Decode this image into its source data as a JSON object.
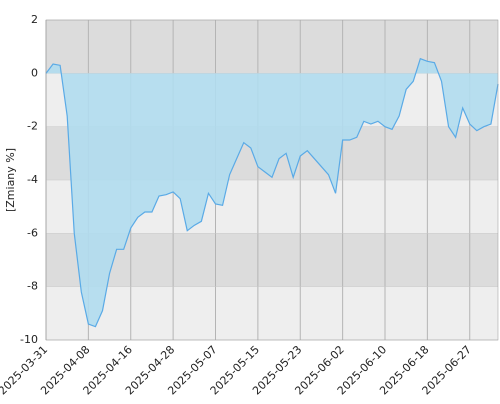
{
  "chart_data": {
    "type": "area",
    "y_label": "[Zmiany %]",
    "categories": [
      "2025-03-31",
      null,
      null,
      null,
      null,
      null,
      "2025-04-08",
      null,
      null,
      null,
      null,
      null,
      "2025-04-16",
      null,
      null,
      null,
      null,
      null,
      "2025-04-28",
      null,
      null,
      null,
      null,
      null,
      "2025-05-07",
      null,
      null,
      null,
      null,
      null,
      "2025-05-15",
      null,
      null,
      null,
      null,
      null,
      "2025-05-23",
      null,
      null,
      null,
      null,
      null,
      "2025-06-02",
      null,
      null,
      null,
      null,
      null,
      "2025-06-10",
      null,
      null,
      null,
      null,
      null,
      "2025-06-18",
      null,
      null,
      null,
      null,
      null,
      "2025-06-27",
      null,
      null,
      null,
      null
    ],
    "values": [
      0,
      0.35,
      0.3,
      -1.6,
      -6.0,
      -8.2,
      -9.4,
      -9.5,
      -8.9,
      -7.5,
      -6.6,
      -6.6,
      -5.8,
      -5.4,
      -5.2,
      -5.2,
      -4.6,
      -4.55,
      -4.45,
      -4.7,
      -5.9,
      -5.7,
      -5.55,
      -4.5,
      -4.9,
      -4.95,
      -3.8,
      -3.2,
      -2.6,
      -2.8,
      -3.5,
      -3.7,
      -3.9,
      -3.2,
      -3.0,
      -3.9,
      -3.1,
      -2.9,
      -3.2,
      -3.5,
      -3.8,
      -4.5,
      -2.5,
      -2.5,
      -2.4,
      -1.8,
      -1.9,
      -1.8,
      -2.0,
      -2.1,
      -1.6,
      -0.6,
      -0.3,
      0.55,
      0.45,
      0.4,
      -0.3,
      -2.0,
      -2.4,
      -1.3,
      -1.9,
      -2.15,
      -2.0,
      -1.9,
      -0.4
    ],
    "color": "#5aaae6",
    "fill": "#b0dcee",
    "ylim": [
      -10,
      2
    ],
    "yticks": [
      2,
      0,
      -2,
      -4,
      -6,
      -8,
      -10
    ],
    "grid": true
  }
}
